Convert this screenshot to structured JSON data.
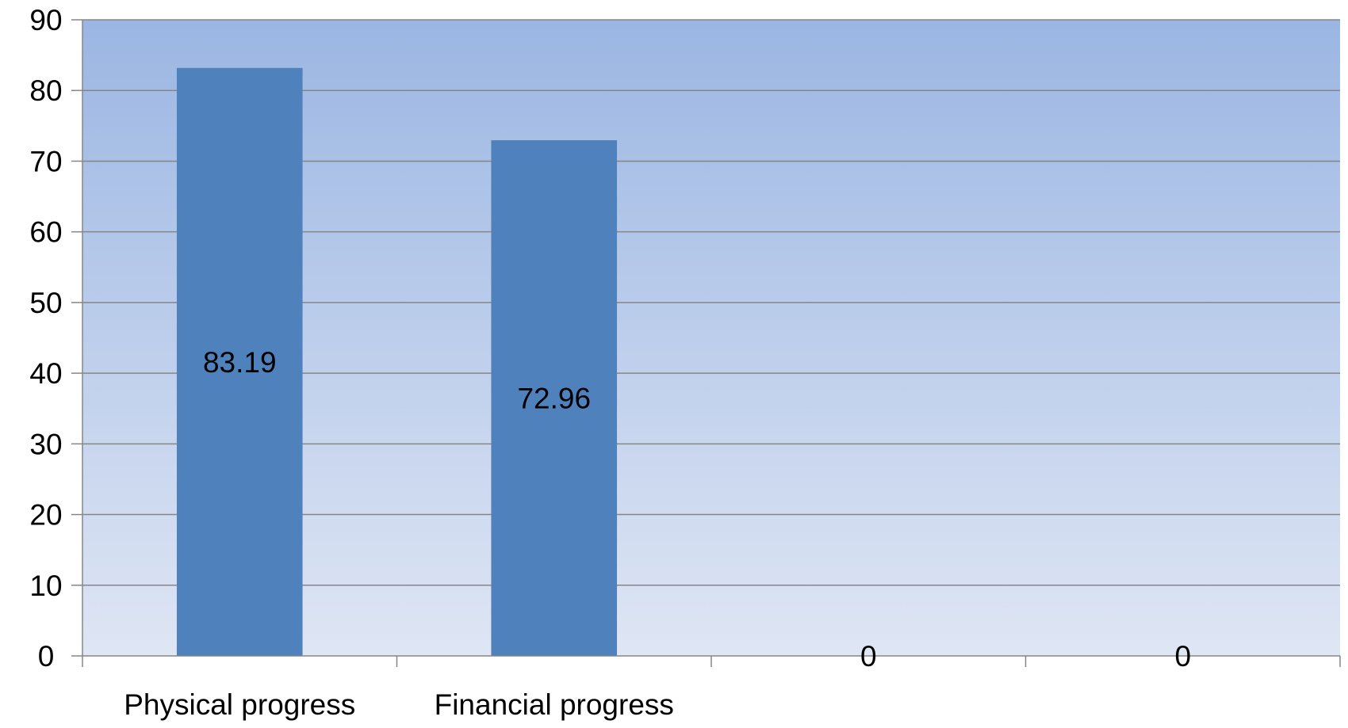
{
  "chart_data": {
    "type": "bar",
    "categories": [
      "Physical progress",
      "Financial progress",
      "",
      ""
    ],
    "values": [
      83.19,
      72.96,
      0,
      0
    ],
    "data_labels": [
      "83.19",
      "72.96",
      "0",
      "0"
    ],
    "ylim": [
      0,
      90
    ],
    "yticks": [
      0,
      10,
      20,
      30,
      40,
      50,
      60,
      70,
      80,
      90
    ],
    "grid": true,
    "legend": "none",
    "colors": {
      "bar": "#4f81bd",
      "plot_bg_top": "#9bb6e3",
      "plot_bg_bottom": "#dfe6f4",
      "grid": "#868686",
      "axis": "#868686"
    }
  }
}
